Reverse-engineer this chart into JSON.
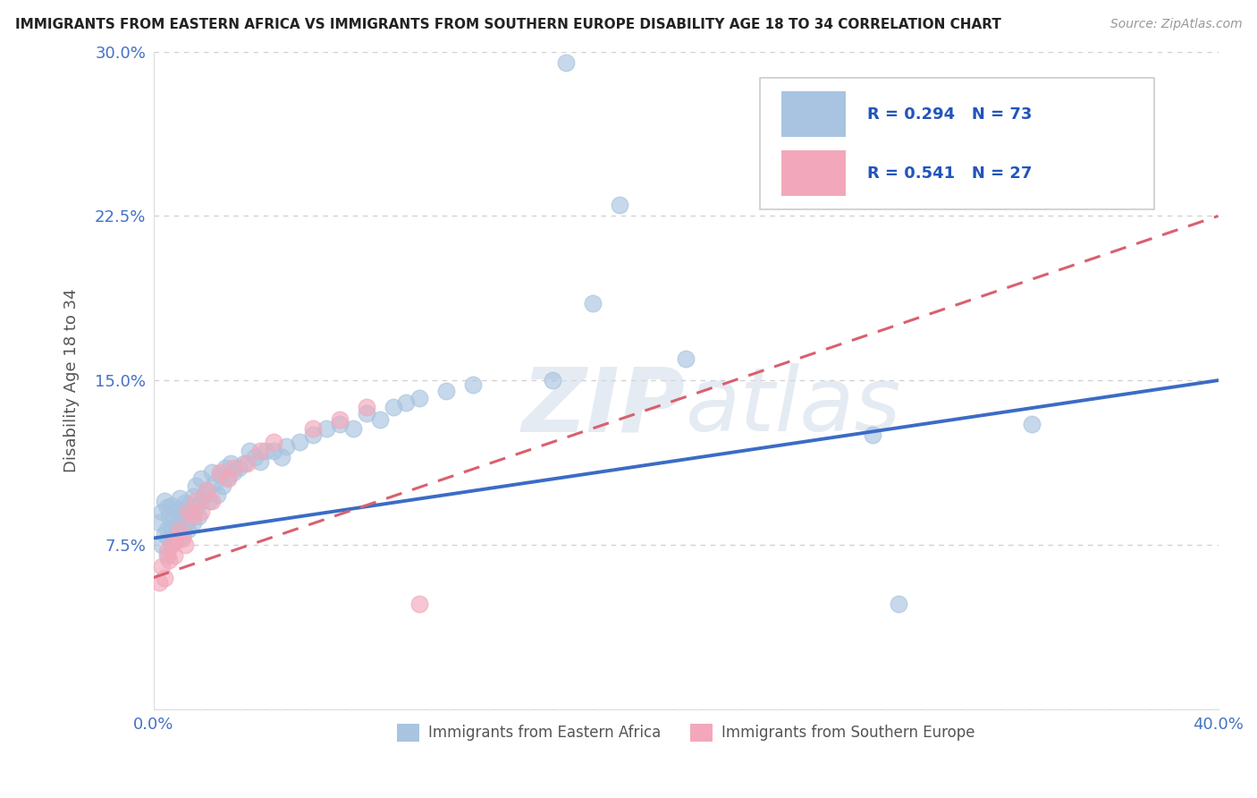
{
  "title": "IMMIGRANTS FROM EASTERN AFRICA VS IMMIGRANTS FROM SOUTHERN EUROPE DISABILITY AGE 18 TO 34 CORRELATION CHART",
  "source": "Source: ZipAtlas.com",
  "ylabel": "Disability Age 18 to 34",
  "xlim": [
    0.0,
    0.4
  ],
  "ylim": [
    0.0,
    0.3
  ],
  "xticks": [
    0.0,
    0.05,
    0.1,
    0.15,
    0.2,
    0.25,
    0.3,
    0.35,
    0.4
  ],
  "yticks": [
    0.0,
    0.075,
    0.15,
    0.225,
    0.3
  ],
  "xticklabels": [
    "0.0%",
    "",
    "",
    "",
    "",
    "",
    "",
    "",
    "40.0%"
  ],
  "yticklabels": [
    "",
    "7.5%",
    "15.0%",
    "22.5%",
    "30.0%"
  ],
  "series1_label": "Immigrants from Eastern Africa",
  "series2_label": "Immigrants from Southern Europe",
  "R1": 0.294,
  "N1": 73,
  "R2": 0.541,
  "N2": 27,
  "color1": "#A8C4E0",
  "color2": "#F2A8BA",
  "trendline1_color": "#3B6CC5",
  "trendline2_color": "#D96070",
  "watermark_color": "#D0DCE8",
  "background_color": "#FFFFFF",
  "grid_color": "#CCCCCC",
  "tick_color": "#4472C4",
  "title_color": "#222222",
  "ylabel_color": "#555555",
  "legend_border_color": "#CCCCCC",
  "scatter1_x": [
    0.002,
    0.003,
    0.003,
    0.004,
    0.004,
    0.005,
    0.005,
    0.005,
    0.006,
    0.006,
    0.007,
    0.007,
    0.008,
    0.008,
    0.009,
    0.009,
    0.01,
    0.01,
    0.011,
    0.011,
    0.012,
    0.012,
    0.013,
    0.013,
    0.014,
    0.015,
    0.015,
    0.016,
    0.016,
    0.017,
    0.018,
    0.018,
    0.019,
    0.02,
    0.021,
    0.022,
    0.023,
    0.024,
    0.025,
    0.026,
    0.027,
    0.028,
    0.029,
    0.03,
    0.032,
    0.034,
    0.036,
    0.038,
    0.04,
    0.042,
    0.045,
    0.048,
    0.05,
    0.055,
    0.06,
    0.065,
    0.07,
    0.075,
    0.08,
    0.085,
    0.09,
    0.095,
    0.1,
    0.11,
    0.12,
    0.15,
    0.155,
    0.175,
    0.2,
    0.33,
    0.27,
    0.28,
    0.165
  ],
  "scatter1_y": [
    0.085,
    0.075,
    0.09,
    0.08,
    0.095,
    0.07,
    0.082,
    0.092,
    0.078,
    0.088,
    0.083,
    0.093,
    0.076,
    0.087,
    0.081,
    0.091,
    0.086,
    0.096,
    0.079,
    0.089,
    0.084,
    0.094,
    0.082,
    0.093,
    0.09,
    0.085,
    0.097,
    0.092,
    0.102,
    0.088,
    0.095,
    0.105,
    0.098,
    0.1,
    0.095,
    0.108,
    0.103,
    0.098,
    0.107,
    0.102,
    0.11,
    0.106,
    0.112,
    0.108,
    0.11,
    0.112,
    0.118,
    0.115,
    0.113,
    0.118,
    0.118,
    0.115,
    0.12,
    0.122,
    0.125,
    0.128,
    0.13,
    0.128,
    0.135,
    0.132,
    0.138,
    0.14,
    0.142,
    0.145,
    0.148,
    0.15,
    0.295,
    0.23,
    0.16,
    0.13,
    0.125,
    0.048,
    0.185
  ],
  "scatter2_x": [
    0.002,
    0.003,
    0.004,
    0.005,
    0.006,
    0.007,
    0.008,
    0.009,
    0.01,
    0.011,
    0.012,
    0.013,
    0.015,
    0.016,
    0.018,
    0.02,
    0.022,
    0.025,
    0.028,
    0.03,
    0.035,
    0.04,
    0.045,
    0.06,
    0.07,
    0.08,
    0.1
  ],
  "scatter2_y": [
    0.058,
    0.065,
    0.06,
    0.072,
    0.068,
    0.075,
    0.07,
    0.078,
    0.082,
    0.078,
    0.075,
    0.09,
    0.088,
    0.095,
    0.09,
    0.1,
    0.095,
    0.108,
    0.105,
    0.11,
    0.112,
    0.118,
    0.122,
    0.128,
    0.132,
    0.138,
    0.048
  ],
  "trendline1_x0": 0.0,
  "trendline1_y0": 0.078,
  "trendline1_x1": 0.4,
  "trendline1_y1": 0.15,
  "trendline2_x0": 0.0,
  "trendline2_y0": 0.06,
  "trendline2_x1": 0.4,
  "trendline2_y1": 0.225
}
